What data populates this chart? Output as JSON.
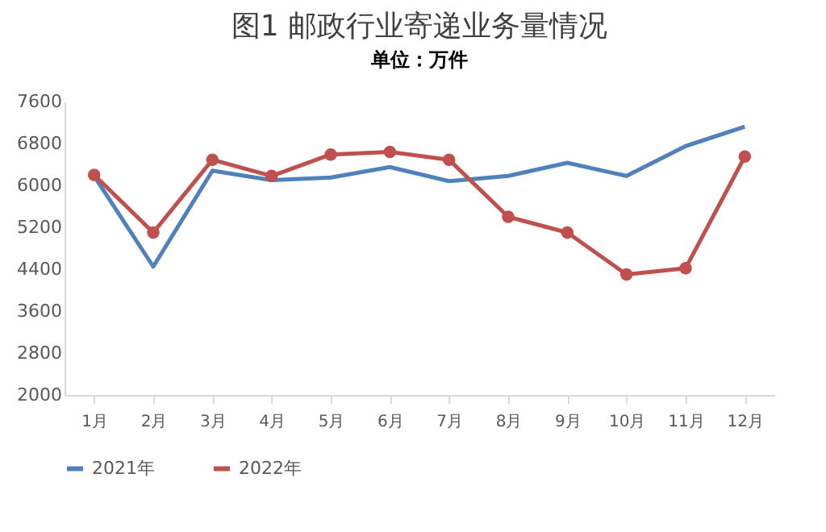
{
  "chart_data": {
    "type": "line",
    "title": "图1 邮政行业寄递业务量情况",
    "subtitle": "单位：万件",
    "categories": [
      "1月",
      "2月",
      "3月",
      "4月",
      "5月",
      "6月",
      "7月",
      "8月",
      "9月",
      "10月",
      "11月",
      "12月"
    ],
    "series": [
      {
        "name": "2021年",
        "color": "#4f81bd",
        "marker": "none",
        "values": [
          6180,
          4450,
          6280,
          6100,
          6150,
          6350,
          6080,
          6180,
          6430,
          6180,
          6750,
          7120
        ]
      },
      {
        "name": "2022年",
        "color": "#c0504d",
        "marker": "circle",
        "values": [
          6200,
          5100,
          6490,
          6180,
          6590,
          6640,
          6490,
          5400,
          5100,
          4300,
          4420,
          6550
        ]
      }
    ],
    "ylim": [
      2000,
      7600
    ],
    "yticks": [
      2000,
      2800,
      3600,
      4400,
      5200,
      6000,
      6800,
      7600
    ],
    "grid": false,
    "legend": "bottom"
  }
}
